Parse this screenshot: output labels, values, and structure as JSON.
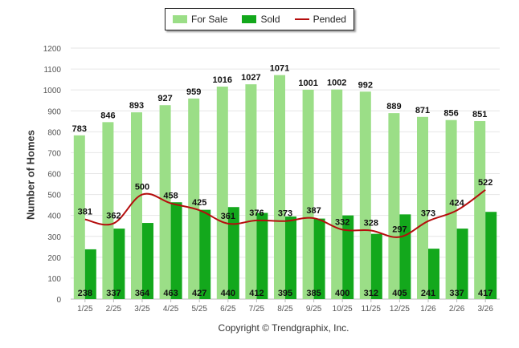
{
  "chart_data": {
    "type": "bar",
    "title": "",
    "xlabel": "",
    "ylabel": "Number of Homes",
    "ylim": [
      0,
      1200
    ],
    "yticks": [
      0,
      100,
      200,
      300,
      400,
      500,
      600,
      700,
      800,
      900,
      1000,
      1100,
      1200
    ],
    "categories": [
      "1/25",
      "2/25",
      "3/25",
      "4/25",
      "5/25",
      "6/25",
      "7/25",
      "8/25",
      "9/25",
      "10/25",
      "11/25",
      "12/25",
      "1/26",
      "2/26",
      "3/26"
    ],
    "series": [
      {
        "name": "For Sale",
        "kind": "bar",
        "color": "#9bde87",
        "values": [
          783,
          846,
          893,
          927,
          959,
          1016,
          1027,
          1071,
          1001,
          1002,
          992,
          889,
          871,
          856,
          851
        ]
      },
      {
        "name": "Sold",
        "kind": "bar",
        "color": "#13a81c",
        "values": [
          238,
          337,
          364,
          463,
          427,
          440,
          412,
          395,
          385,
          400,
          312,
          405,
          241,
          337,
          417
        ]
      },
      {
        "name": "Pended",
        "kind": "line",
        "color": "#b50d0d",
        "values": [
          381,
          362,
          500,
          458,
          425,
          361,
          376,
          373,
          387,
          332,
          328,
          297,
          373,
          424,
          522
        ]
      }
    ],
    "legend": "top-center",
    "grid": true
  },
  "footer": {
    "copyright": "Copyright © Trendgraphix, Inc."
  }
}
